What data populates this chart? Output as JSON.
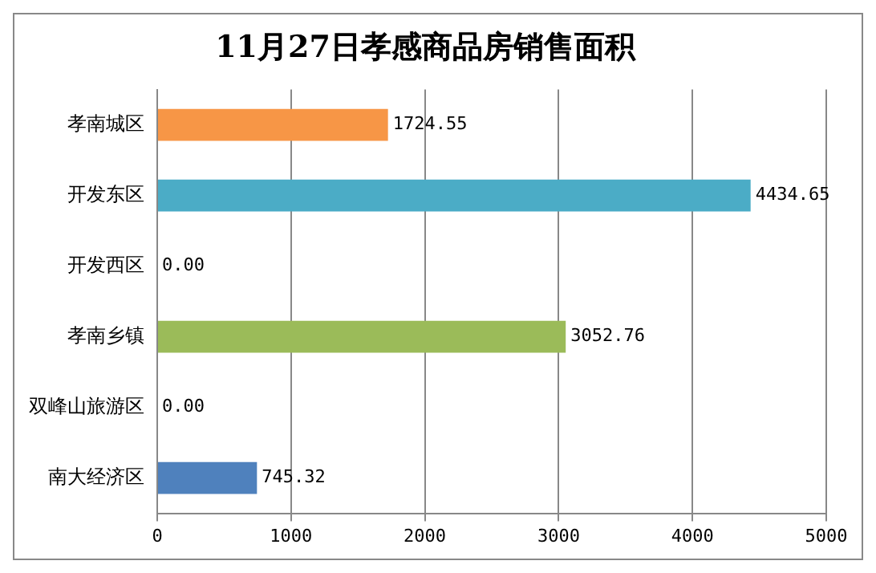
{
  "chart_data": {
    "type": "bar",
    "orientation": "horizontal",
    "title": "11月27日孝感商品房销售面积",
    "categories": [
      "孝南城区",
      "开发东区",
      "开发西区",
      "孝南乡镇",
      "双峰山旅游区",
      "南大经济区"
    ],
    "values": [
      1724.55,
      4434.65,
      0,
      3052.76,
      0,
      745.32
    ],
    "colors": [
      "#f79646",
      "#4bacc6",
      "#c0504d",
      "#9bbb59",
      "#8064a2",
      "#4f81bd"
    ],
    "value_labels": [
      "1724.55",
      "4434.65",
      "0.00",
      "3052.76",
      "0.00",
      "745.32"
    ],
    "xlim": [
      0,
      5000
    ],
    "xticks": [
      0,
      1000,
      2000,
      3000,
      4000,
      5000
    ],
    "grid": "x"
  }
}
